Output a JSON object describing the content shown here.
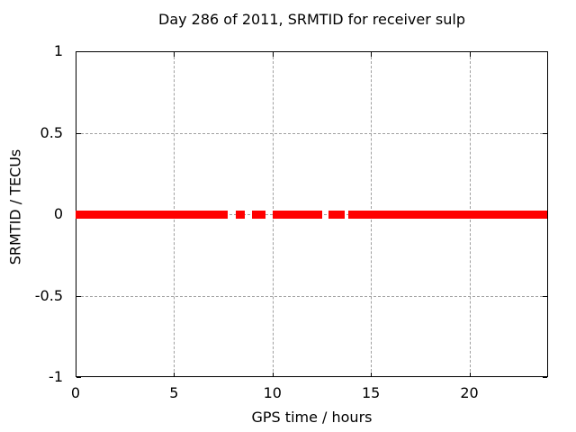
{
  "chart_data": {
    "type": "line",
    "title": "Day 286 of 2011, SRMTID for receiver sulp",
    "xlabel": "GPS time / hours",
    "ylabel": "SRMTID / TECUs",
    "xlim": [
      0,
      24
    ],
    "ylim": [
      -1,
      1
    ],
    "xticks": [
      0,
      5,
      10,
      15,
      20
    ],
    "xtick_labels": [
      "0",
      "5",
      "10",
      "15",
      "20"
    ],
    "yticks": [
      1,
      0.5,
      0,
      -0.5,
      -1
    ],
    "ytick_labels": [
      "1",
      "0.5",
      "0",
      "-0.5",
      "-1"
    ],
    "grid": true,
    "legend": "none",
    "series": [
      {
        "name": "SRMTID",
        "y_value": 0,
        "color": "#ff0000",
        "segments_hours": [
          [
            0.0,
            7.73
          ],
          [
            8.14,
            8.59
          ],
          [
            8.96,
            9.65
          ],
          [
            10.01,
            12.53
          ],
          [
            12.85,
            13.67
          ],
          [
            13.85,
            23.95
          ]
        ]
      }
    ],
    "colors": {
      "line": "#ff0000",
      "grid": "#a0a0a0",
      "border": "#000000",
      "text": "#000000",
      "background": "#ffffff"
    }
  }
}
